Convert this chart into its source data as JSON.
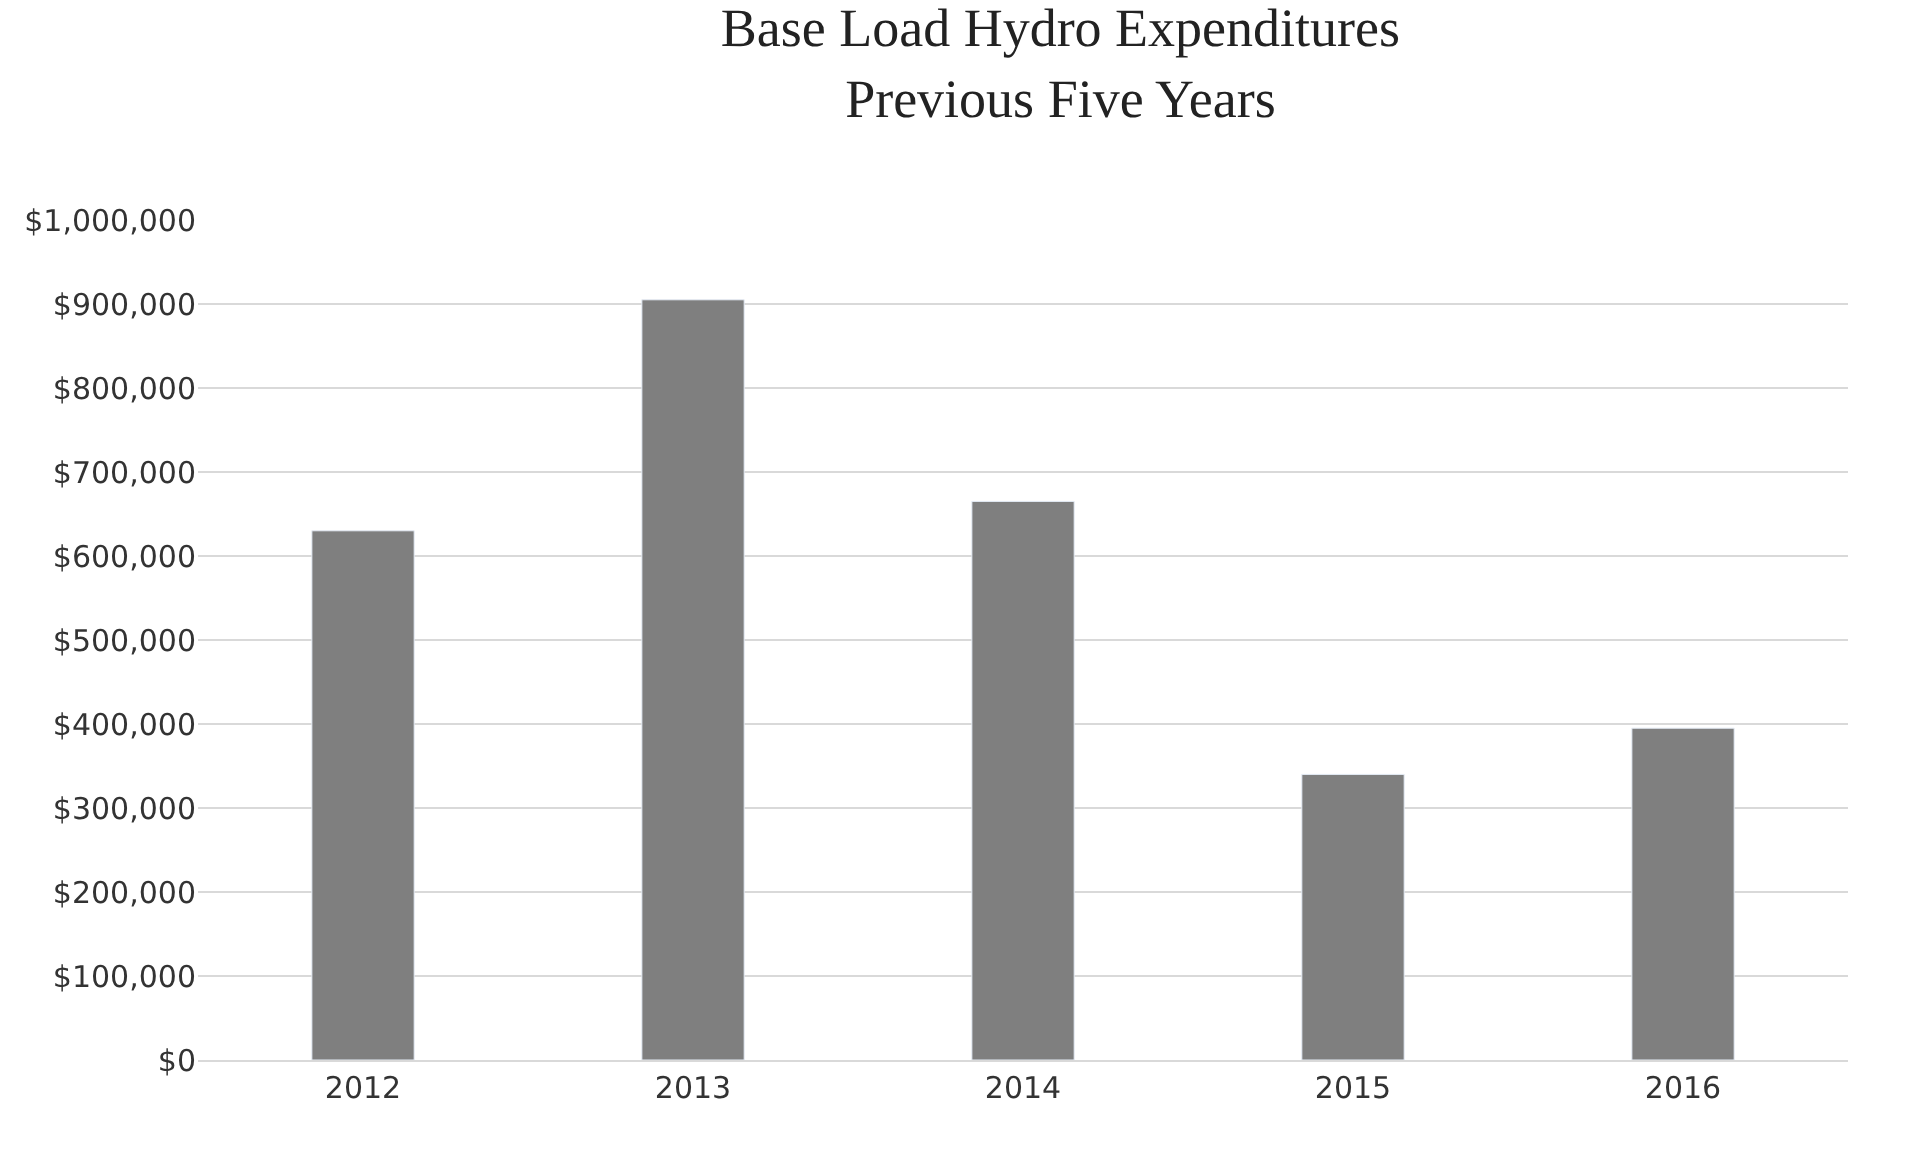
{
  "chart_data": {
    "type": "bar",
    "title": "Base Load Hydro Expenditures\nPrevious Five Years",
    "categories": [
      "2012",
      "2013",
      "2014",
      "2015",
      "2016"
    ],
    "values": [
      630000,
      905000,
      665000,
      340000,
      395000
    ],
    "color": "#7f7f7f",
    "ylim": [
      0,
      1000000
    ],
    "yticks": [
      {
        "value": 0,
        "label": "$0"
      },
      {
        "value": 100000,
        "label": "$100,000"
      },
      {
        "value": 200000,
        "label": "$200,000"
      },
      {
        "value": 300000,
        "label": "$300,000"
      },
      {
        "value": 400000,
        "label": "$400,000"
      },
      {
        "value": 500000,
        "label": "$500,000"
      },
      {
        "value": 600000,
        "label": "$600,000"
      },
      {
        "value": 700000,
        "label": "$700,000"
      },
      {
        "value": 800000,
        "label": "$800,000"
      },
      {
        "value": 900000,
        "label": "$900,000"
      },
      {
        "value": 1000000,
        "label": "$1,000,000"
      }
    ],
    "grid": "y"
  }
}
